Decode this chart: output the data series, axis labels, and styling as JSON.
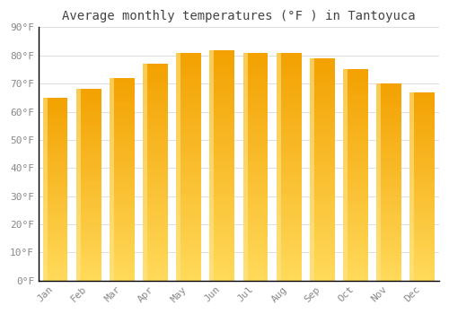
{
  "title": "Average monthly temperatures (°F ) in Tantoyuca",
  "months": [
    "Jan",
    "Feb",
    "Mar",
    "Apr",
    "May",
    "Jun",
    "Jul",
    "Aug",
    "Sep",
    "Oct",
    "Nov",
    "Dec"
  ],
  "values": [
    65,
    68,
    72,
    77,
    81,
    82,
    81,
    81,
    79,
    75,
    70,
    67
  ],
  "bar_color_bottom": "#FFD060",
  "bar_color_top": "#F0A000",
  "background_color": "#FFFFFF",
  "grid_color": "#DDDDDD",
  "text_color": "#888888",
  "title_color": "#444444",
  "spine_color": "#000000",
  "ylim": [
    0,
    90
  ],
  "yticks": [
    0,
    10,
    20,
    30,
    40,
    50,
    60,
    70,
    80,
    90
  ],
  "ytick_labels": [
    "0°F",
    "10°F",
    "20°F",
    "30°F",
    "40°F",
    "50°F",
    "60°F",
    "70°F",
    "80°F",
    "90°F"
  ],
  "title_fontsize": 10,
  "tick_fontsize": 8,
  "font_family": "monospace",
  "bar_width": 0.75
}
